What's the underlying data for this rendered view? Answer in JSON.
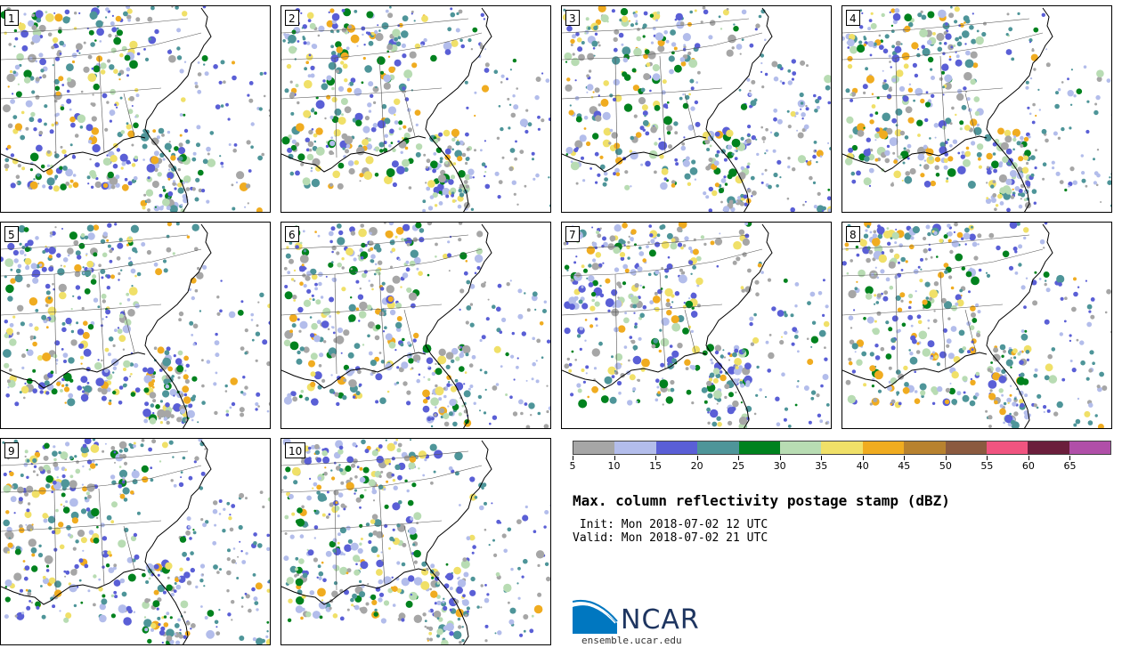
{
  "panels": [
    {
      "label": "1",
      "seed": 11
    },
    {
      "label": "2",
      "seed": 23
    },
    {
      "label": "3",
      "seed": 37
    },
    {
      "label": "4",
      "seed": 41
    },
    {
      "label": "5",
      "seed": 53
    },
    {
      "label": "6",
      "seed": 67
    },
    {
      "label": "7",
      "seed": 71
    },
    {
      "label": "8",
      "seed": 89
    },
    {
      "label": "9",
      "seed": 97
    },
    {
      "label": "10",
      "seed": 103
    }
  ],
  "colorbar": {
    "colors": [
      "#a6a6a6",
      "#b3bdeb",
      "#5a5fd6",
      "#4e9599",
      "#00821e",
      "#b8dcb3",
      "#f0e068",
      "#f0ac20",
      "#b8822f",
      "#8b5a3f",
      "#f05480",
      "#6b1e3c",
      "#b04fa8"
    ],
    "ticks": [
      "5",
      "10",
      "15",
      "20",
      "25",
      "30",
      "35",
      "40",
      "45",
      "50",
      "55",
      "60",
      "65"
    ]
  },
  "title": "Max. column reflectivity postage stamp (dBZ)",
  "init": " Init: Mon 2018-07-02 12 UTC",
  "valid": "Valid: Mon 2018-07-02 21 UTC",
  "logo": {
    "name": "NCAR",
    "site": "ensemble.ucar.edu",
    "color": "#0077c0"
  }
}
